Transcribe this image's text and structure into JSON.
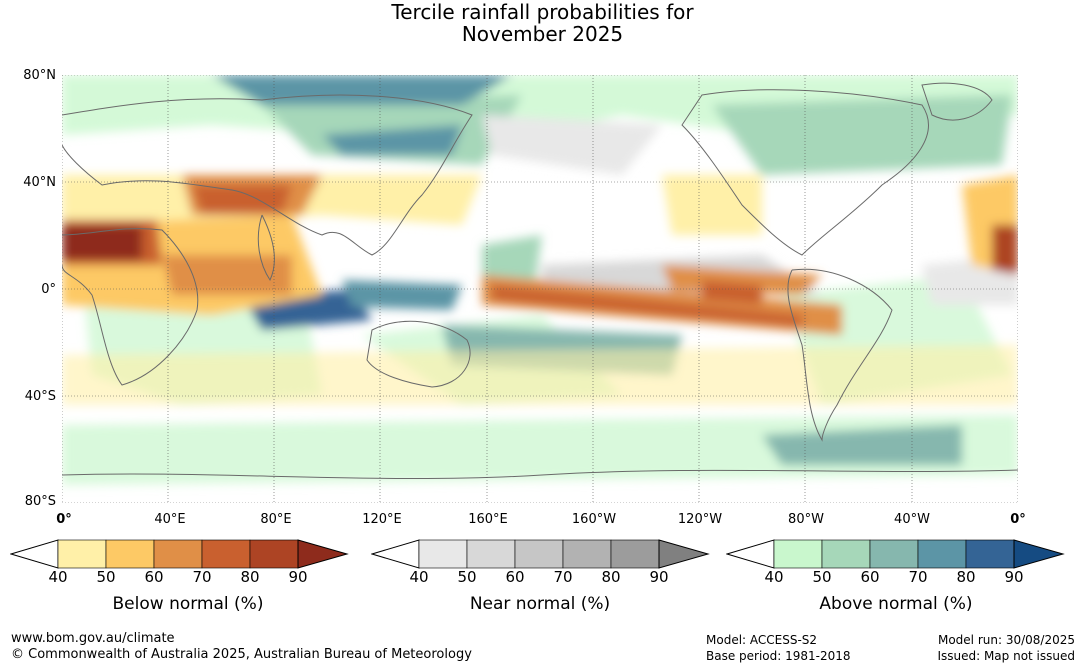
{
  "title_line1": "Tercile rainfall probabilities for",
  "title_line2": "November 2025",
  "lat_labels": [
    "80°N",
    "40°N",
    "0°",
    "40°S",
    "80°S"
  ],
  "lon_labels": [
    "0°",
    "40°E",
    "80°E",
    "120°E",
    "160°E",
    "160°W",
    "120°W",
    "80°W",
    "40°W",
    "0°"
  ],
  "legends": [
    {
      "title": "Below normal (%)",
      "ticks": [
        "40",
        "50",
        "60",
        "70",
        "80",
        "90"
      ],
      "colors": [
        "#fff0a8",
        "#fdc965",
        "#e08f47",
        "#c9602f",
        "#ad4424",
        "#8e2b1c"
      ]
    },
    {
      "title": "Near normal (%)",
      "ticks": [
        "40",
        "50",
        "60",
        "70",
        "80",
        "90"
      ],
      "colors": [
        "#e8e8e8",
        "#d8d8d8",
        "#c6c6c6",
        "#b2b2b2",
        "#9c9c9c",
        "#808080"
      ]
    },
    {
      "title": "Above normal (%)",
      "ticks": [
        "40",
        "50",
        "60",
        "70",
        "80",
        "90"
      ],
      "colors": [
        "#c9f7cd",
        "#a6d7b9",
        "#86b7ae",
        "#5c95a6",
        "#346495",
        "#154b82"
      ]
    }
  ],
  "footer": {
    "website": "www.bom.gov.au/climate",
    "copyright": "© Commonwealth of Australia 2025, Australian Bureau of Meteorology",
    "model": "Model: ACCESS-S2",
    "base_period": "Base period: 1981-2018",
    "model_run": "Model run: 30/08/2025",
    "issued": "Issued: Map not issued"
  }
}
